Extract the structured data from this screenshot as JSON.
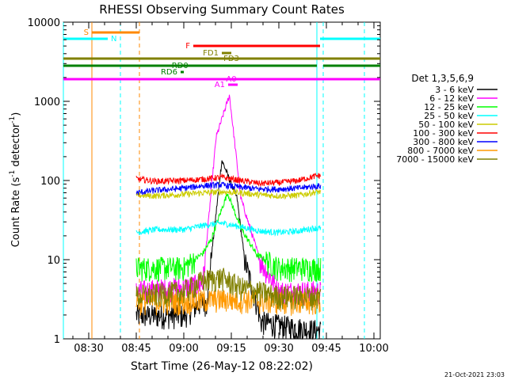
{
  "chart_data": {
    "type": "line",
    "title": "RHESSI Observing Summary Count Rates",
    "xlabel": "Start Time (26-May-12 08:22:02)",
    "ylabel": "Count Rate (s⁻¹ detector⁻¹)",
    "ylabel_main": "Count Rate (s",
    "ylabel_sup1": "-1",
    "ylabel_mid": " detector",
    "ylabel_sup2": "-1",
    "ylabel_end": ")",
    "x_start": "08:22",
    "x_end": "10:02",
    "x_ticks": [
      "08:30",
      "08:45",
      "09:00",
      "09:15",
      "09:30",
      "09:45",
      "10:00"
    ],
    "y_scale": "log",
    "ylim": [
      1,
      10000
    ],
    "y_ticks": [
      "1",
      "10",
      "100",
      "1000",
      "10000"
    ],
    "grid": false,
    "legend_title": "Det 1,3,5,6,9",
    "legend_placement": "right",
    "series": [
      {
        "name": "3 - 6 keV",
        "color": "#000000",
        "baseline": [
          [
            8.75,
            2
          ],
          [
            9.0,
            2
          ],
          [
            9.1,
            3
          ],
          [
            9.25,
            2
          ],
          [
            9.5,
            1.5
          ],
          [
            9.68,
            1.3
          ]
        ],
        "peaks": [
          [
            9.12,
            3
          ],
          [
            9.2,
            180
          ],
          [
            9.28,
            60
          ],
          [
            9.32,
            10
          ],
          [
            9.4,
            2
          ]
        ]
      },
      {
        "name": "6 - 12 keV",
        "color": "#ff00ff",
        "baseline": [
          [
            8.75,
            4
          ],
          [
            9.0,
            4.5
          ],
          [
            9.1,
            5
          ],
          [
            9.5,
            4
          ],
          [
            9.7,
            4
          ]
        ],
        "peaks": [
          [
            9.1,
            5
          ],
          [
            9.17,
            350
          ],
          [
            9.24,
            1200
          ],
          [
            9.3,
            60
          ],
          [
            9.4,
            10
          ],
          [
            9.5,
            4
          ]
        ]
      },
      {
        "name": "12 - 25 keV",
        "color": "#00ff00",
        "baseline": [
          [
            8.75,
            8
          ],
          [
            9.0,
            8
          ],
          [
            9.1,
            12
          ],
          [
            9.2,
            30
          ],
          [
            9.3,
            15
          ],
          [
            9.5,
            8
          ],
          [
            9.7,
            8
          ]
        ],
        "peaks": [
          [
            9.15,
            20
          ],
          [
            9.23,
            70
          ],
          [
            9.3,
            25
          ],
          [
            9.4,
            10
          ]
        ]
      },
      {
        "name": "25 - 50 keV",
        "color": "#00ffff",
        "baseline": [
          [
            8.75,
            22
          ],
          [
            8.85,
            24
          ],
          [
            9.0,
            24
          ],
          [
            9.1,
            27
          ],
          [
            9.2,
            29
          ],
          [
            9.3,
            26
          ],
          [
            9.4,
            23
          ],
          [
            9.5,
            22
          ],
          [
            9.6,
            23
          ],
          [
            9.68,
            25
          ],
          [
            9.7,
            25
          ]
        ],
        "peaks": []
      },
      {
        "name": "50 - 100 keV",
        "color": "#cccc00",
        "baseline": [
          [
            8.75,
            65
          ],
          [
            8.85,
            64
          ],
          [
            9.0,
            67
          ],
          [
            9.1,
            70
          ],
          [
            9.2,
            72
          ],
          [
            9.3,
            70
          ],
          [
            9.4,
            66
          ],
          [
            9.5,
            64
          ],
          [
            9.6,
            65
          ],
          [
            9.7,
            72
          ]
        ],
        "peaks": []
      },
      {
        "name": "100 - 300 keV",
        "color": "#ff0000",
        "baseline": [
          [
            8.75,
            105
          ],
          [
            8.85,
            98
          ],
          [
            9.0,
            100
          ],
          [
            9.1,
            104
          ],
          [
            9.2,
            110
          ],
          [
            9.3,
            100
          ],
          [
            9.4,
            92
          ],
          [
            9.5,
            94
          ],
          [
            9.6,
            100
          ],
          [
            9.7,
            115
          ]
        ],
        "peaks": []
      },
      {
        "name": "300 - 800 keV",
        "color": "#0000ff",
        "baseline": [
          [
            8.75,
            70
          ],
          [
            8.85,
            75
          ],
          [
            9.0,
            80
          ],
          [
            9.1,
            86
          ],
          [
            9.2,
            88
          ],
          [
            9.3,
            82
          ],
          [
            9.4,
            78
          ],
          [
            9.5,
            78
          ],
          [
            9.6,
            80
          ],
          [
            9.7,
            85
          ]
        ],
        "peaks": []
      },
      {
        "name": "800 - 7000 keV",
        "color": "#ff9900",
        "baseline": [
          [
            8.75,
            3
          ],
          [
            9.0,
            3
          ],
          [
            9.2,
            3.2
          ],
          [
            9.5,
            3
          ],
          [
            9.7,
            3
          ]
        ],
        "peaks": []
      },
      {
        "name": "7000 - 15000 keV",
        "color": "#808000",
        "baseline": [
          [
            8.75,
            3.5
          ],
          [
            9.0,
            4
          ],
          [
            9.1,
            5.5
          ],
          [
            9.2,
            6
          ],
          [
            9.3,
            4.5
          ],
          [
            9.5,
            3.5
          ],
          [
            9.7,
            3.5
          ]
        ],
        "peaks": []
      }
    ],
    "flag_bars": [
      {
        "label": "S",
        "color": "#ff8800",
        "start": "08:31",
        "end": "08:46"
      },
      {
        "label": "N",
        "color": "#00ffff",
        "start": "08:22",
        "end": "08:36"
      },
      {
        "label": "N",
        "color": "#00ffff",
        "start": "09:43",
        "end": "10:02"
      },
      {
        "label": "F",
        "color": "#ff0000",
        "start": "09:03",
        "end": "09:43"
      },
      {
        "label": "FD1",
        "color": "#808000",
        "start": "09:12",
        "end": "09:15"
      },
      {
        "label": "FD3",
        "color": "#808000",
        "start": "08:22",
        "end": "10:02"
      },
      {
        "label": "RD0",
        "color": "#008000",
        "start": "08:22",
        "end": "09:42"
      },
      {
        "label": "RD0",
        "color": "#008000",
        "start": "09:44",
        "end": "10:02"
      },
      {
        "label": "RD6",
        "color": "#008000",
        "start": "08:59",
        "end": "09:00"
      },
      {
        "label": "A0",
        "color": "#ff00ff",
        "start": "08:22",
        "end": "10:02"
      },
      {
        "label": "A1",
        "color": "#ff00ff",
        "start": "09:14",
        "end": "09:17"
      }
    ],
    "vlines": [
      {
        "time": "08:22",
        "color": "#00ffff",
        "style": "solid"
      },
      {
        "time": "08:31",
        "color": "#ff8800",
        "style": "solid"
      },
      {
        "time": "08:40",
        "color": "#00ffff",
        "style": "dashed"
      },
      {
        "time": "08:46",
        "color": "#ff8800",
        "style": "dashed"
      },
      {
        "time": "09:42",
        "color": "#00ffff",
        "style": "solid"
      },
      {
        "time": "09:44",
        "color": "#00ffff",
        "style": "dashed"
      },
      {
        "time": "09:57",
        "color": "#00ffff",
        "style": "dashed"
      }
    ],
    "timestamp": "21-Oct-2021 23:03"
  }
}
